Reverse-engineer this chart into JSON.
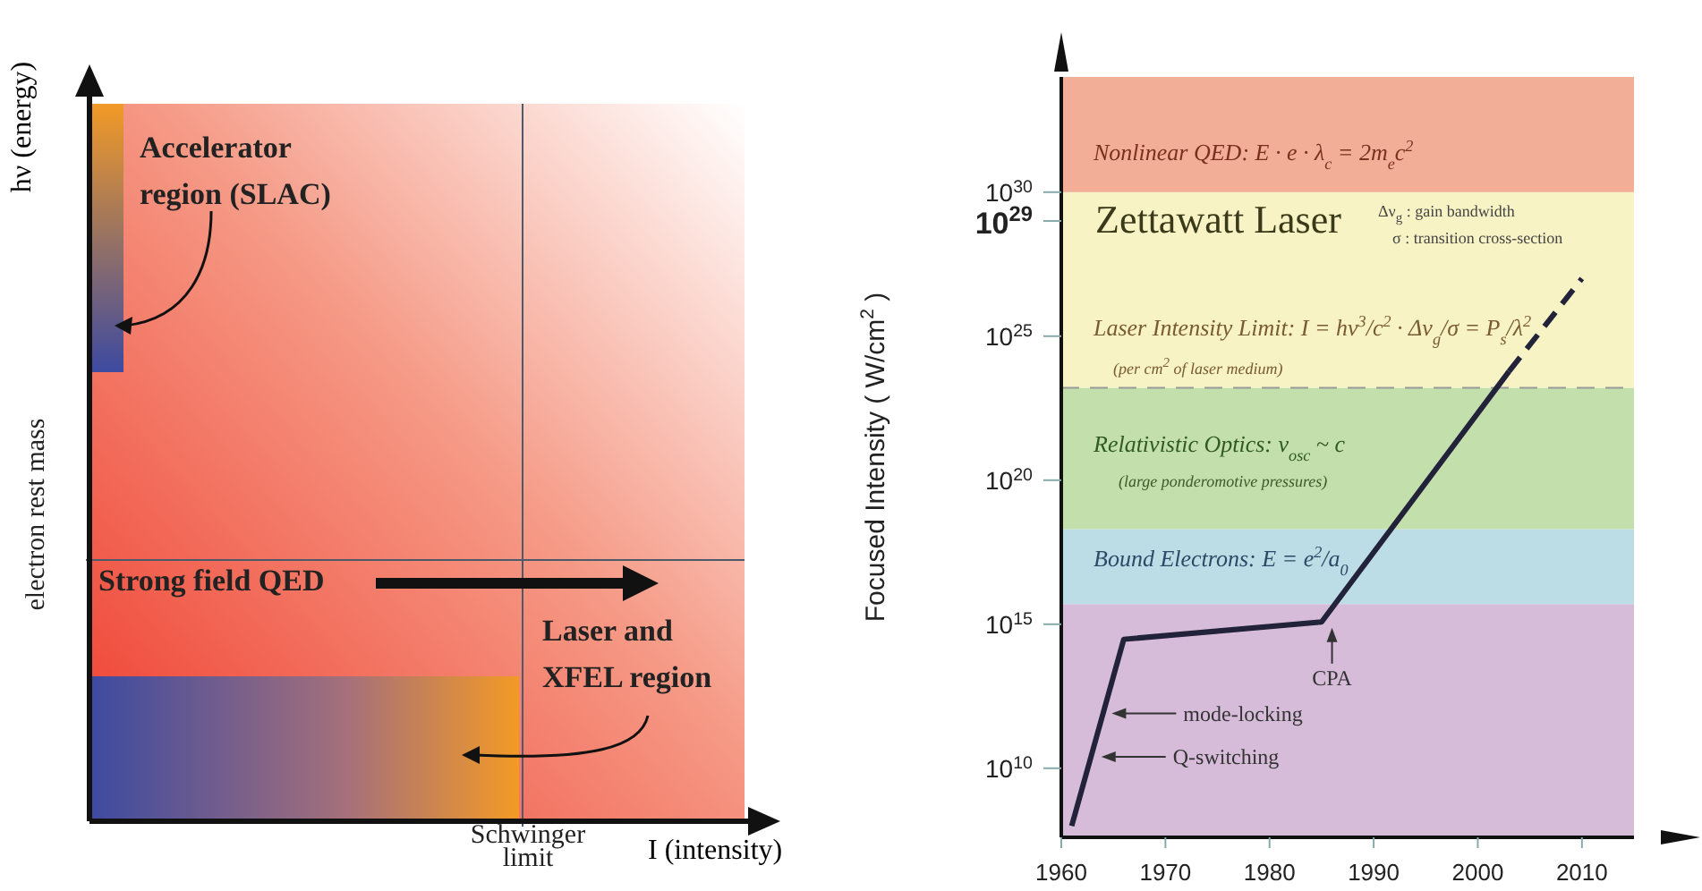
{
  "chart_data": [
    {
      "type": "other",
      "xlabel": "I (intensity)",
      "ylabel": "hν (energy)",
      "annotations": [
        "Accelerator region (SLAC)",
        "electron rest mass",
        "Strong field QED",
        "Laser and XFEL region",
        "Schwinger limit"
      ]
    },
    {
      "type": "line",
      "ylabel": "Focused Intensity ( W/cm$^{2}$ )",
      "log": "y",
      "xlim": [
        1960,
        2015
      ],
      "xticks": [
        1960,
        1970,
        1980,
        1990,
        2000,
        2010
      ],
      "ylim": [
        40000000.0,
        1e+34
      ],
      "yticks": [
        {
          "value": 10000000000.0,
          "label": "10$^{10}$"
        },
        {
          "value": 1000000000000000.0,
          "label": "10$^{15}$"
        },
        {
          "value": 1e+20,
          "label": "10$^{20}$"
        },
        {
          "value": 1e+25,
          "label": "10$^{25}$"
        },
        {
          "value": 1e+29,
          "label": "10$^{29}$"
        },
        {
          "value": 1e+30,
          "label": "10$^{30}$"
        }
      ],
      "series": [
        {
          "color": "#22223a",
          "x": [
            1961,
            1966,
            1985,
            2003
          ],
          "values": [
            100000000.0,
            300000000000000.0,
            1200000000000000.0,
            6e+23
          ],
          "line_style": "solid"
        },
        {
          "color": "#22223a",
          "x": [
            2003,
            2010
          ],
          "values": [
            6e+23,
            1e+27
          ],
          "line_style": "dashed"
        }
      ],
      "marker": "none",
      "bands": [
        {
          "axis": "y",
          "from": 40000000.0,
          "to": 5000000000000000.0,
          "color": "#d6bcd9"
        },
        {
          "axis": "y",
          "from": 5000000000000000.0,
          "to": 2e+18,
          "color": "#bcdce6",
          "label": "Bound Electrons:  E = e$^{2}$/a$_{0}$"
        },
        {
          "axis": "y",
          "from": 2e+18,
          "to": 1.6e+23,
          "color": "#c3dfab",
          "label": "Relativistic Optics:  v$_{osc}$ ~ c"
        },
        {
          "axis": "y",
          "from": 1.6e+23,
          "to": 1e+30,
          "color": "#f7f3c4",
          "label": "Laser Intensity Limit:  I = hν$^{3}$/c$^{2}$ · Δν$_{g}$/σ = P$_{s}$/λ$^{2}$"
        },
        {
          "axis": "y",
          "from": 1e+30,
          "to": 1e+34,
          "color": "#f2ae96",
          "label": "Nonlinear QED:  E · e · λ$_{c}$ = 2m$_{e}$c$^{2}$"
        }
      ],
      "ref_lines": [
        {
          "axis": "y",
          "value": 1.6e+23,
          "color": "#999999",
          "line_style": "dashed"
        }
      ],
      "annotations": [
        "Zettawatt Laser",
        "Δν$_{g}$ : gain bandwidth",
        "σ : transition cross-section",
        "(per cm$^{2}$ of laser medium)",
        "(large ponderomotive pressures)",
        {
          "text": "mode-locking",
          "x": 1964.5,
          "y": 800000000000.0
        },
        {
          "text": "Q-switching",
          "x": 1963.5,
          "y": 25000000000.0
        },
        {
          "text": "CPA",
          "x": 1986,
          "y": 1000000000000000.0
        }
      ]
    }
  ]
}
